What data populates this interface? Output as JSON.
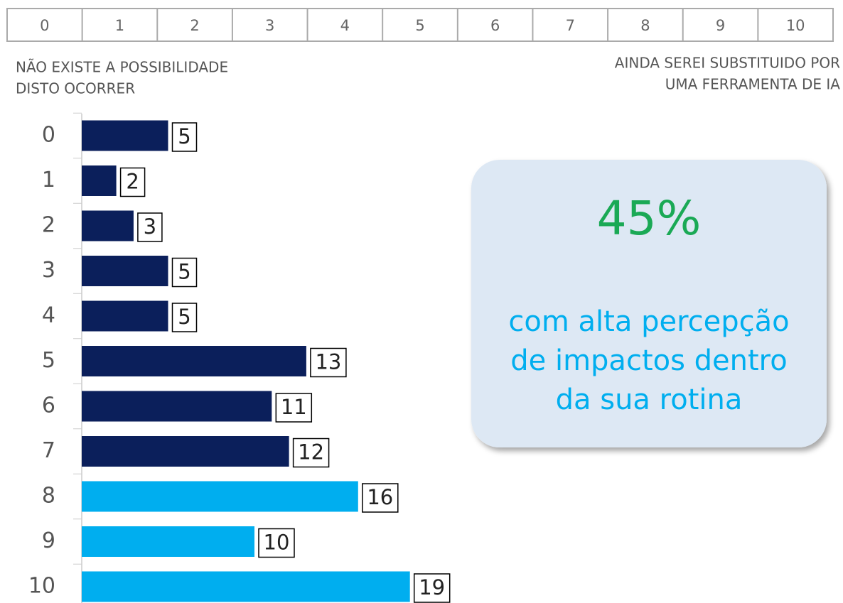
{
  "scale": {
    "points": [
      0,
      1,
      2,
      3,
      4,
      5,
      6,
      7,
      8,
      9,
      10
    ],
    "low_label": [
      "NÃO EXISTE A POSSIBILIDADE",
      "DISTO OCORRER"
    ],
    "high_label": [
      "AINDA SEREI SUBSTITUIDO POR",
      "UMA FERRAMENTA DE IA"
    ]
  },
  "chart_data": {
    "type": "hbar",
    "categories": [
      "0",
      "1",
      "2",
      "3",
      "4",
      "5",
      "6",
      "7",
      "8",
      "9",
      "10"
    ],
    "values": [
      5,
      2,
      3,
      5,
      5,
      13,
      11,
      12,
      16,
      10,
      19
    ],
    "colors": [
      "#0b1f5b",
      "#0b1f5b",
      "#0b1f5b",
      "#0b1f5b",
      "#0b1f5b",
      "#0b1f5b",
      "#0b1f5b",
      "#0b1f5b",
      "#00aeef",
      "#00aeef",
      "#00aeef"
    ]
  },
  "callout": {
    "headline": "45%",
    "lines": [
      "com alta percepção",
      "de impactos dentro",
      "da sua rotina"
    ]
  }
}
